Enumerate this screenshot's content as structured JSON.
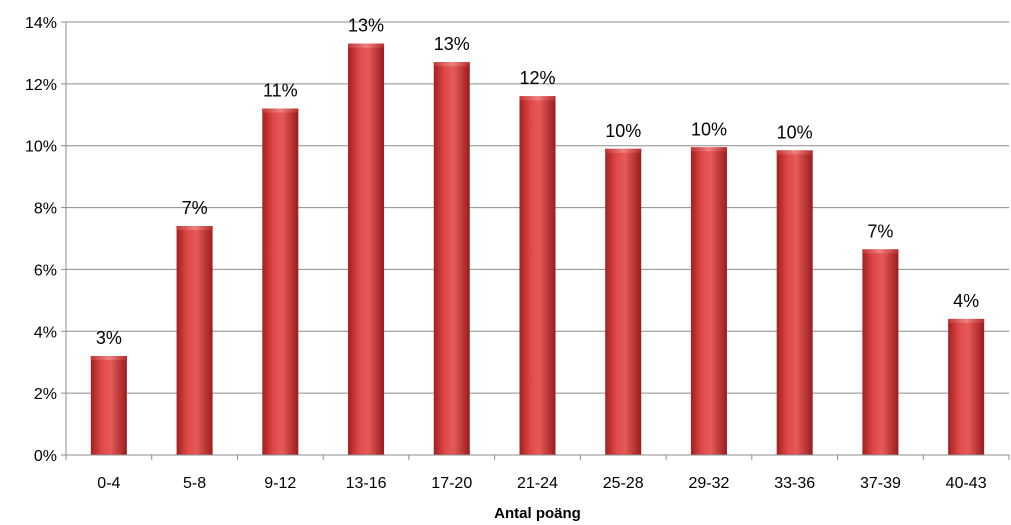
{
  "chart_data": {
    "type": "bar",
    "categories": [
      "0-4",
      "5-8",
      "9-12",
      "13-16",
      "17-20",
      "21-24",
      "25-28",
      "29-32",
      "33-36",
      "37-39",
      "40-43"
    ],
    "values": [
      3.2,
      7.4,
      11.2,
      13.3,
      12.7,
      11.6,
      9.9,
      9.95,
      9.85,
      6.65,
      4.4
    ],
    "data_labels": [
      "3%",
      "7%",
      "11%",
      "13%",
      "13%",
      "12%",
      "10%",
      "10%",
      "10%",
      "7%",
      "4%"
    ],
    "xlabel": "Antal poäng",
    "ylabel": "",
    "ylim": [
      0,
      14
    ],
    "yticks": [
      0,
      2,
      4,
      6,
      8,
      10,
      12,
      14
    ],
    "ytick_labels": [
      "0%",
      "2%",
      "4%",
      "6%",
      "8%",
      "10%",
      "12%",
      "14%"
    ],
    "grid": true,
    "bar_color": "#d63b3b"
  }
}
